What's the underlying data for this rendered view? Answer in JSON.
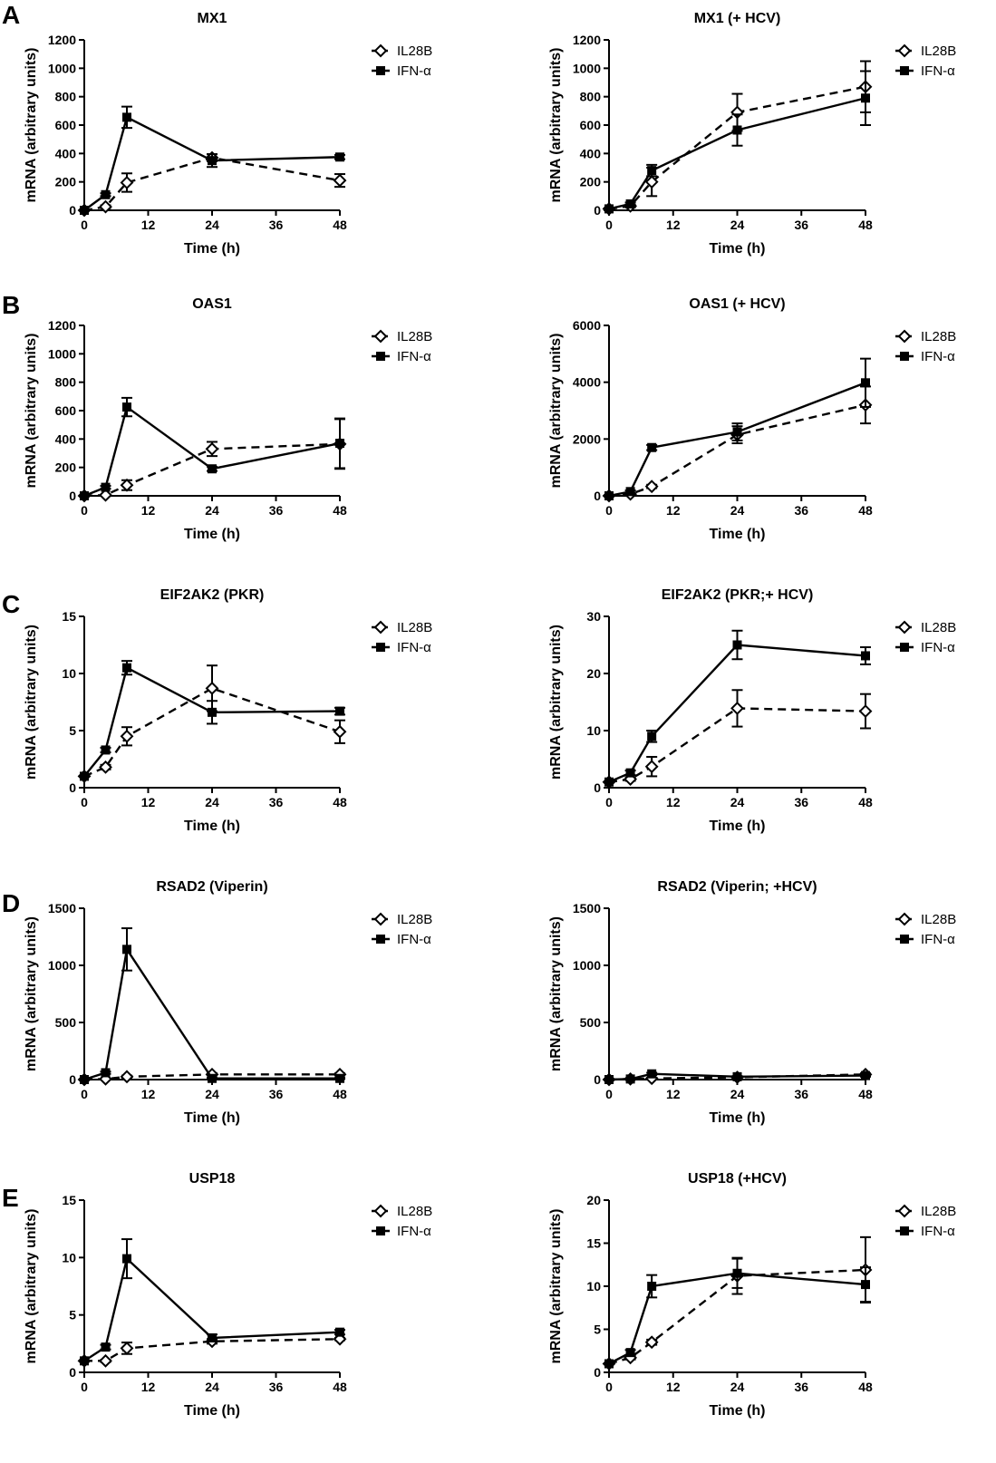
{
  "panel_letters": [
    "A",
    "B",
    "C",
    "D",
    "E"
  ],
  "legend_labels": {
    "il28b": "IL28B",
    "ifn": "IFN-α"
  },
  "colors": {
    "ink": "#000000",
    "background": "#ffffff",
    "il28b_fill": "#ffffff",
    "ifn_fill": "#000000"
  },
  "chart_data": [
    {
      "type": "line",
      "title": "MX1",
      "xlabel": "Time (h)",
      "ylabel": "mRNA (arbitrary units)",
      "x_ticks": [
        "0",
        "12",
        "24",
        "36",
        "48"
      ],
      "y_ticks": [
        "0",
        "200",
        "400",
        "600",
        "800",
        "1000",
        "1200"
      ],
      "xlim": [
        0,
        48
      ],
      "ylim": [
        0,
        1200
      ],
      "legend": "right",
      "series": [
        {
          "name": "IL28B",
          "style": "dashed",
          "marker": "open-diamond",
          "x": [
            0,
            4,
            8,
            24,
            48
          ],
          "y": [
            0,
            25,
            195,
            370,
            210
          ],
          "err": [
            0,
            10,
            65,
            25,
            45
          ]
        },
        {
          "name": "IFN-α",
          "style": "solid",
          "marker": "filled-square",
          "x": [
            0,
            4,
            8,
            24,
            48
          ],
          "y": [
            0,
            110,
            655,
            350,
            375
          ],
          "err": [
            0,
            10,
            75,
            45,
            15
          ]
        }
      ]
    },
    {
      "type": "line",
      "title": "MX1 (+ HCV)",
      "xlabel": "Time (h)",
      "ylabel": "mRNA (arbitrary units)",
      "x_ticks": [
        "0",
        "12",
        "24",
        "36",
        "48"
      ],
      "y_ticks": [
        "0",
        "200",
        "400",
        "600",
        "800",
        "1000",
        "1200"
      ],
      "xlim": [
        0,
        48
      ],
      "ylim": [
        0,
        1200
      ],
      "legend": "right",
      "series": [
        {
          "name": "IL28B",
          "style": "dashed",
          "marker": "open-diamond",
          "x": [
            0,
            4,
            8,
            24,
            48
          ],
          "y": [
            10,
            30,
            200,
            690,
            870
          ],
          "err": [
            5,
            10,
            100,
            130,
            180
          ]
        },
        {
          "name": "IFN-α",
          "style": "solid",
          "marker": "filled-square",
          "x": [
            0,
            4,
            8,
            24,
            48
          ],
          "y": [
            10,
            45,
            280,
            565,
            790
          ],
          "err": [
            5,
            10,
            40,
            110,
            190
          ]
        }
      ]
    },
    {
      "type": "line",
      "title": "OAS1",
      "xlabel": "Time (h)",
      "ylabel": "mRNA (arbitrary units)",
      "x_ticks": [
        "0",
        "12",
        "24",
        "36",
        "48"
      ],
      "y_ticks": [
        "0",
        "200",
        "400",
        "600",
        "800",
        "1000",
        "1200"
      ],
      "xlim": [
        0,
        48
      ],
      "ylim": [
        0,
        1200
      ],
      "legend": "right",
      "series": [
        {
          "name": "IL28B",
          "style": "dashed",
          "marker": "open-diamond",
          "x": [
            0,
            4,
            8,
            24,
            48
          ],
          "y": [
            0,
            5,
            75,
            330,
            365
          ],
          "err": [
            0,
            5,
            35,
            50,
            175
          ]
        },
        {
          "name": "IFN-α",
          "style": "solid",
          "marker": "filled-square",
          "x": [
            0,
            4,
            8,
            24,
            48
          ],
          "y": [
            0,
            60,
            625,
            190,
            370
          ],
          "err": [
            0,
            10,
            65,
            15,
            175
          ]
        }
      ]
    },
    {
      "type": "line",
      "title": "OAS1 (+ HCV)",
      "xlabel": "Time (h)",
      "ylabel": "mRNA (arbitrary units)",
      "x_ticks": [
        "0",
        "12",
        "24",
        "36",
        "48"
      ],
      "y_ticks": [
        "0",
        "2000",
        "4000",
        "6000"
      ],
      "xlim": [
        0,
        48
      ],
      "ylim": [
        0,
        6000
      ],
      "legend": "right",
      "series": [
        {
          "name": "IL28B",
          "style": "dashed",
          "marker": "open-diamond",
          "x": [
            0,
            4,
            8,
            24,
            48
          ],
          "y": [
            0,
            60,
            330,
            2150,
            3200
          ],
          "err": [
            0,
            30,
            60,
            300,
            650
          ]
        },
        {
          "name": "IFN-α",
          "style": "solid",
          "marker": "filled-square",
          "x": [
            0,
            4,
            8,
            24,
            48
          ],
          "y": [
            0,
            150,
            1700,
            2250,
            3980
          ],
          "err": [
            0,
            40,
            90,
            300,
            850
          ]
        }
      ]
    },
    {
      "type": "line",
      "title": "EIF2AK2 (PKR)",
      "xlabel": "Time (h)",
      "ylabel": "mRNA (arbitrary units)",
      "x_ticks": [
        "0",
        "12",
        "24",
        "36",
        "48"
      ],
      "y_ticks": [
        "0",
        "5",
        "10",
        "15"
      ],
      "xlim": [
        0,
        48
      ],
      "ylim": [
        0,
        15
      ],
      "legend": "right",
      "series": [
        {
          "name": "IL28B",
          "style": "dashed",
          "marker": "open-diamond",
          "x": [
            0,
            4,
            8,
            24,
            48
          ],
          "y": [
            1,
            1.8,
            4.5,
            8.7,
            4.9
          ],
          "err": [
            0,
            0.2,
            0.8,
            2.0,
            1.0
          ]
        },
        {
          "name": "IFN-α",
          "style": "solid",
          "marker": "filled-square",
          "x": [
            0,
            4,
            8,
            24,
            48
          ],
          "y": [
            1,
            3.3,
            10.5,
            6.6,
            6.7
          ],
          "err": [
            0,
            0.2,
            0.6,
            1.0,
            0.3
          ]
        }
      ]
    },
    {
      "type": "line",
      "title": "EIF2AK2 (PKR;+ HCV)",
      "xlabel": "Time (h)",
      "ylabel": "mRNA (arbitrary units)",
      "x_ticks": [
        "0",
        "12",
        "24",
        "36",
        "48"
      ],
      "y_ticks": [
        "0",
        "10",
        "20",
        "30"
      ],
      "xlim": [
        0,
        48
      ],
      "ylim": [
        0,
        30
      ],
      "legend": "right",
      "series": [
        {
          "name": "IL28B",
          "style": "dashed",
          "marker": "open-diamond",
          "x": [
            0,
            4,
            8,
            24,
            48
          ],
          "y": [
            1,
            1.5,
            3.7,
            13.9,
            13.4
          ],
          "err": [
            0,
            0.3,
            1.7,
            3.2,
            3.0
          ]
        },
        {
          "name": "IFN-α",
          "style": "solid",
          "marker": "filled-square",
          "x": [
            0,
            4,
            8,
            24,
            48
          ],
          "y": [
            1,
            2.6,
            9.0,
            25.0,
            23.1
          ],
          "err": [
            0,
            0.4,
            1.0,
            2.5,
            1.5
          ]
        }
      ]
    },
    {
      "type": "line",
      "title": "RSAD2 (Viperin)",
      "xlabel": "Time (h)",
      "ylabel": "mRNA (arbitrary units)",
      "x_ticks": [
        "0",
        "12",
        "24",
        "36",
        "48"
      ],
      "y_ticks": [
        "0",
        "500",
        "1000",
        "1500"
      ],
      "xlim": [
        0,
        48
      ],
      "ylim": [
        0,
        1500
      ],
      "legend": "right",
      "series": [
        {
          "name": "IL28B",
          "style": "dashed",
          "marker": "open-diamond",
          "x": [
            0,
            4,
            8,
            24,
            48
          ],
          "y": [
            0,
            5,
            25,
            45,
            45
          ],
          "err": [
            0,
            3,
            10,
            10,
            10
          ]
        },
        {
          "name": "IFN-α",
          "style": "solid",
          "marker": "filled-square",
          "x": [
            0,
            4,
            8,
            24,
            48
          ],
          "y": [
            0,
            60,
            1140,
            10,
            10
          ],
          "err": [
            0,
            10,
            185,
            5,
            5
          ]
        }
      ]
    },
    {
      "type": "line",
      "title": "RSAD2 (Viperin; +HCV)",
      "xlabel": "Time (h)",
      "ylabel": "mRNA (arbitrary units)",
      "x_ticks": [
        "0",
        "12",
        "24",
        "36",
        "48"
      ],
      "y_ticks": [
        "0",
        "500",
        "1000",
        "1500"
      ],
      "xlim": [
        0,
        48
      ],
      "ylim": [
        0,
        1500
      ],
      "legend": "right",
      "series": [
        {
          "name": "IL28B",
          "style": "dashed",
          "marker": "open-diamond",
          "x": [
            0,
            4,
            8,
            24,
            48
          ],
          "y": [
            0,
            5,
            10,
            20,
            45
          ],
          "err": [
            0,
            3,
            5,
            5,
            10
          ]
        },
        {
          "name": "IFN-α",
          "style": "solid",
          "marker": "filled-square",
          "x": [
            0,
            4,
            8,
            24,
            48
          ],
          "y": [
            0,
            5,
            50,
            25,
            35
          ],
          "err": [
            0,
            3,
            10,
            5,
            10
          ]
        }
      ]
    },
    {
      "type": "line",
      "title": "USP18",
      "xlabel": "Time (h)",
      "ylabel": "mRNA (arbitrary units)",
      "x_ticks": [
        "0",
        "12",
        "24",
        "36",
        "48"
      ],
      "y_ticks": [
        "0",
        "5",
        "10",
        "15"
      ],
      "xlim": [
        0,
        48
      ],
      "ylim": [
        0,
        15
      ],
      "legend": "right",
      "series": [
        {
          "name": "IL28B",
          "style": "dashed",
          "marker": "open-diamond",
          "x": [
            0,
            4,
            8,
            24,
            48
          ],
          "y": [
            1,
            1.0,
            2.1,
            2.7,
            2.9
          ],
          "err": [
            0,
            0.1,
            0.5,
            0.2,
            0.1
          ]
        },
        {
          "name": "IFN-α",
          "style": "solid",
          "marker": "filled-square",
          "x": [
            0,
            4,
            8,
            24,
            48
          ],
          "y": [
            1,
            2.2,
            9.9,
            3.0,
            3.5
          ],
          "err": [
            0,
            0.2,
            1.7,
            0.3,
            0.2
          ]
        }
      ]
    },
    {
      "type": "line",
      "title": "USP18 (+HCV)",
      "xlabel": "Time (h)",
      "ylabel": "mRNA (arbitrary units)",
      "x_ticks": [
        "0",
        "12",
        "24",
        "36",
        "48"
      ],
      "y_ticks": [
        "0",
        "5",
        "10",
        "15",
        "20"
      ],
      "xlim": [
        0,
        48
      ],
      "ylim": [
        0,
        20
      ],
      "legend": "right",
      "series": [
        {
          "name": "IL28B",
          "style": "dashed",
          "marker": "open-diamond",
          "x": [
            0,
            4,
            8,
            24,
            48
          ],
          "y": [
            1,
            1.7,
            3.5,
            11.2,
            11.9
          ],
          "err": [
            0,
            0.2,
            0.3,
            2.1,
            3.8
          ]
        },
        {
          "name": "IFN-α",
          "style": "solid",
          "marker": "filled-square",
          "x": [
            0,
            4,
            8,
            24,
            48
          ],
          "y": [
            1,
            2.3,
            10.0,
            11.5,
            10.2
          ],
          "err": [
            0,
            0.3,
            1.3,
            1.7,
            2.0
          ]
        }
      ]
    }
  ]
}
